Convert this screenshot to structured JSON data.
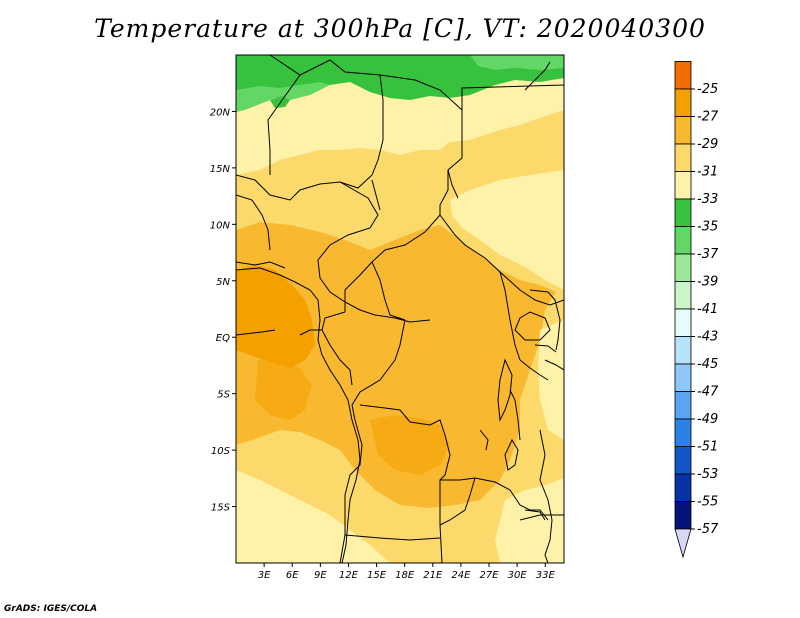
{
  "title": "Temperature at 300hPa [C], VT: 2020040300",
  "credit": "GrADS: IGES/COLA",
  "map": {
    "lon_range": [
      0,
      35
    ],
    "lat_range": [
      -20,
      25
    ],
    "lat_ticks": [
      {
        "value": 20,
        "label": "20N"
      },
      {
        "value": 15,
        "label": "15N"
      },
      {
        "value": 10,
        "label": "10N"
      },
      {
        "value": 5,
        "label": "5N"
      },
      {
        "value": 0,
        "label": "EQ"
      },
      {
        "value": -5,
        "label": "5S"
      },
      {
        "value": -10,
        "label": "10S"
      },
      {
        "value": -15,
        "label": "15S"
      }
    ],
    "lon_ticks": [
      {
        "value": 3,
        "label": "3E"
      },
      {
        "value": 6,
        "label": "6E"
      },
      {
        "value": 9,
        "label": "9E"
      },
      {
        "value": 12,
        "label": "12E"
      },
      {
        "value": 15,
        "label": "15E"
      },
      {
        "value": 18,
        "label": "18E"
      },
      {
        "value": 21,
        "label": "21E"
      },
      {
        "value": 24,
        "label": "24E"
      },
      {
        "value": 27,
        "label": "27E"
      },
      {
        "value": 30,
        "label": "30E"
      },
      {
        "value": 33,
        "label": "33E"
      }
    ]
  },
  "colorbar": {
    "labels": [
      "-25",
      "-27",
      "-29",
      "-31",
      "-33",
      "-35",
      "-37",
      "-39",
      "-41",
      "-43",
      "-45",
      "-47",
      "-49",
      "-51",
      "-53",
      "-55",
      "-57"
    ],
    "colors": [
      "#f03c00",
      "#f26d00",
      "#f4a100",
      "#f8b830",
      "#fbd96a",
      "#fdf2a8",
      "#36c23c",
      "#62d766",
      "#98e898",
      "#c8f6c8",
      "#e6fbfb",
      "#b8e2fb",
      "#8ec8f8",
      "#5aa5f0",
      "#2c80e6",
      "#1456c8",
      "#0a32a8",
      "#041478",
      "#d8d8f4"
    ]
  },
  "fields": {
    "level_minus31": "#f8b830",
    "level_minus29": "#f4a100",
    "level_minus33": "#fbd96a",
    "level_minus35": "#fdf2a8",
    "level_minus37": "#36c23c",
    "level_minus39": "#62d766"
  }
}
